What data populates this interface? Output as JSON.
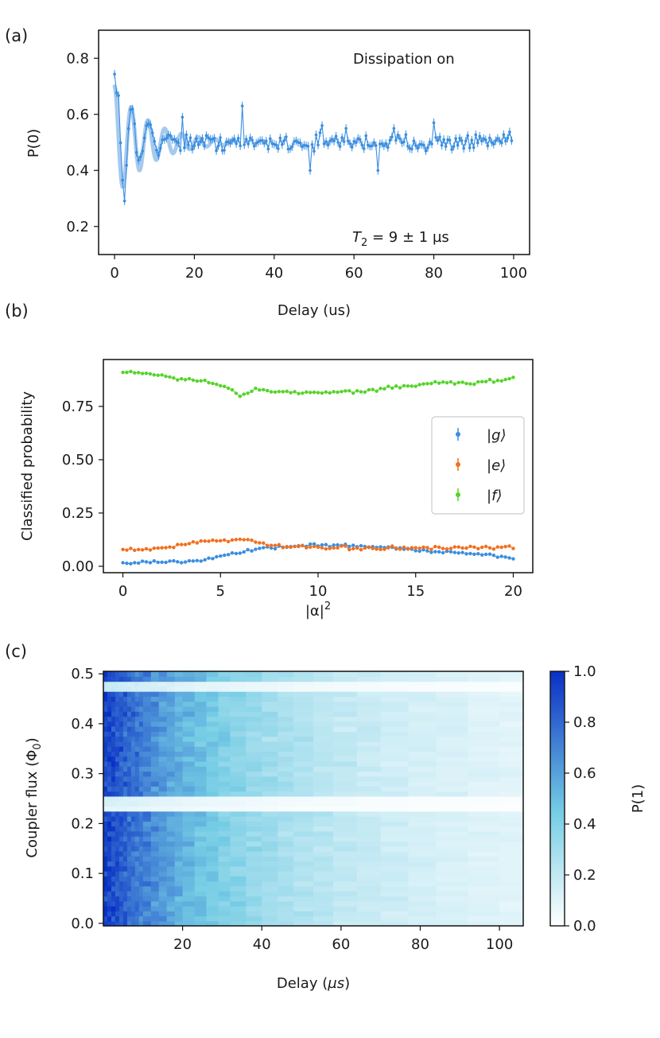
{
  "colors": {
    "blue": "#3a8ee0",
    "orange": "#f07020",
    "green": "#55d42a",
    "fit": "#9cc4ec",
    "cmap_low": "#ffffff",
    "cmap_mid": "#74cce4",
    "cmap_high": "#0a2fc4"
  },
  "panels": {
    "a_label": "(a)",
    "b_label": "(b)",
    "c_label": "(c)"
  },
  "chart_data": [
    {
      "id": "a",
      "type": "scatter",
      "title": "",
      "xlabel": "Delay (us)",
      "ylabel": "P(0)",
      "xlim": [
        -4,
        104
      ],
      "ylim": [
        0.1,
        0.9
      ],
      "xticks": [
        0,
        20,
        40,
        60,
        80,
        100
      ],
      "yticks": [
        0.2,
        0.4,
        0.6,
        0.8
      ],
      "annotation_top": "Dissipation on",
      "annotation_bottom": {
        "symbol": "T",
        "sub": "2",
        "text": " = 9 ± 1 µs"
      },
      "fit": {
        "model": "damped_cosine",
        "baseline": 0.5,
        "amplitude": 0.2,
        "T2_us": 9,
        "period_us": 4.2
      },
      "series": [
        {
          "name": "data",
          "x_start": 0,
          "x_step": 0.5,
          "count": 200,
          "anchors": [
            [
              0,
              0.74
            ],
            [
              0.5,
              0.69
            ],
            [
              1,
              0.66
            ],
            [
              1.5,
              0.5
            ],
            [
              2,
              0.36
            ],
            [
              2.5,
              0.3
            ],
            [
              3,
              0.42
            ],
            [
              3.5,
              0.55
            ],
            [
              4,
              0.61
            ],
            [
              4.5,
              0.62
            ],
            [
              5,
              0.56
            ],
            [
              5.5,
              0.46
            ],
            [
              6,
              0.43
            ],
            [
              7,
              0.47
            ],
            [
              8,
              0.56
            ],
            [
              9,
              0.57
            ],
            [
              10,
              0.5
            ],
            [
              11,
              0.46
            ],
            [
              12,
              0.51
            ],
            [
              14,
              0.52
            ],
            [
              16,
              0.5
            ]
          ],
          "mean": 0.5,
          "noise": 0.025,
          "spikes": [
            [
              17,
              0.59
            ],
            [
              32,
              0.63
            ],
            [
              49,
              0.4
            ],
            [
              52,
              0.56
            ],
            [
              58,
              0.55
            ],
            [
              66,
              0.4
            ],
            [
              70,
              0.55
            ],
            [
              80,
              0.57
            ]
          ],
          "error": 0.015
        }
      ]
    },
    {
      "id": "b",
      "type": "scatter",
      "title": "",
      "xlabel": "|α|",
      "xlabel_sup": "2",
      "ylabel": "Classified probability",
      "xlim": [
        -1,
        21
      ],
      "ylim": [
        -0.03,
        0.97
      ],
      "xticks": [
        0,
        5,
        10,
        15,
        20
      ],
      "yticks": [
        "0.00",
        "0.25",
        "0.50",
        "0.75"
      ],
      "legend_position": "center-right",
      "series": [
        {
          "name": "|g⟩",
          "state": "g",
          "color_key": "blue",
          "x_start": 0,
          "x_step": 0.2,
          "count": 101,
          "anchors": [
            [
              0,
              0.015
            ],
            [
              3,
              0.022
            ],
            [
              4,
              0.03
            ],
            [
              5,
              0.05
            ],
            [
              6,
              0.065
            ],
            [
              7,
              0.085
            ],
            [
              8,
              0.09
            ],
            [
              10,
              0.1
            ],
            [
              12,
              0.095
            ],
            [
              14,
              0.085
            ],
            [
              16,
              0.07
            ],
            [
              18,
              0.06
            ],
            [
              20,
              0.04
            ]
          ],
          "noise": 0.006,
          "error": 0.004
        },
        {
          "name": "|e⟩",
          "state": "e",
          "color_key": "orange",
          "x_start": 0,
          "x_step": 0.2,
          "count": 101,
          "anchors": [
            [
              0,
              0.075
            ],
            [
              1,
              0.08
            ],
            [
              2,
              0.085
            ],
            [
              3,
              0.1
            ],
            [
              4,
              0.12
            ],
            [
              5,
              0.12
            ],
            [
              6,
              0.13
            ],
            [
              7,
              0.105
            ],
            [
              8,
              0.095
            ],
            [
              10,
              0.085
            ],
            [
              12,
              0.085
            ],
            [
              14,
              0.085
            ],
            [
              16,
              0.085
            ],
            [
              18,
              0.085
            ],
            [
              20,
              0.09
            ]
          ],
          "noise": 0.007,
          "error": 0.004
        },
        {
          "name": "|f⟩",
          "state": "f",
          "color_key": "green",
          "x_start": 0,
          "x_step": 0.2,
          "count": 101,
          "anchors": [
            [
              0,
              0.91
            ],
            [
              1,
              0.905
            ],
            [
              2,
              0.895
            ],
            [
              3,
              0.88
            ],
            [
              4,
              0.87
            ],
            [
              5,
              0.85
            ],
            [
              6,
              0.805
            ],
            [
              7,
              0.83
            ],
            [
              8,
              0.82
            ],
            [
              10,
              0.815
            ],
            [
              12,
              0.82
            ],
            [
              14,
              0.84
            ],
            [
              16,
              0.86
            ],
            [
              18,
              0.86
            ],
            [
              20,
              0.88
            ]
          ],
          "noise": 0.007,
          "error": 0.004
        }
      ]
    },
    {
      "id": "c",
      "type": "heatmap",
      "title": "",
      "xlabel": "Delay (",
      "xlabel_unit": "µs",
      "xlabel_close": ")",
      "ylabel": "Coupler flux (Φ",
      "ylabel_sub": "0",
      "ylabel_close": ")",
      "xlim": [
        0,
        106
      ],
      "ylim": [
        -0.005,
        0.505
      ],
      "xticks": [
        20,
        40,
        60,
        80,
        100
      ],
      "yticks": [
        "0.0",
        "0.1",
        "0.2",
        "0.3",
        "0.4",
        "0.5"
      ],
      "y_rows": 51,
      "x_edges": [
        0,
        1,
        2,
        3,
        4,
        5,
        6,
        7,
        8,
        9,
        10,
        12,
        14,
        16,
        18,
        20,
        23,
        26,
        29,
        32,
        36,
        40,
        44,
        48,
        53,
        58,
        64,
        70,
        77,
        84,
        92,
        100,
        106
      ],
      "model": {
        "decay_const_us": 33,
        "max": 0.95,
        "floor": 0.06,
        "noise": 0.09
      },
      "dark_rows": [
        [
          0.475,
          0.2
        ],
        [
          0.235,
          0.1
        ],
        [
          0.245,
          0.15
        ]
      ],
      "colorbar": {
        "label": "P(1)",
        "range": [
          0,
          1
        ],
        "ticks": [
          "0.0",
          "0.2",
          "0.4",
          "0.6",
          "0.8",
          "1.0"
        ]
      }
    }
  ]
}
